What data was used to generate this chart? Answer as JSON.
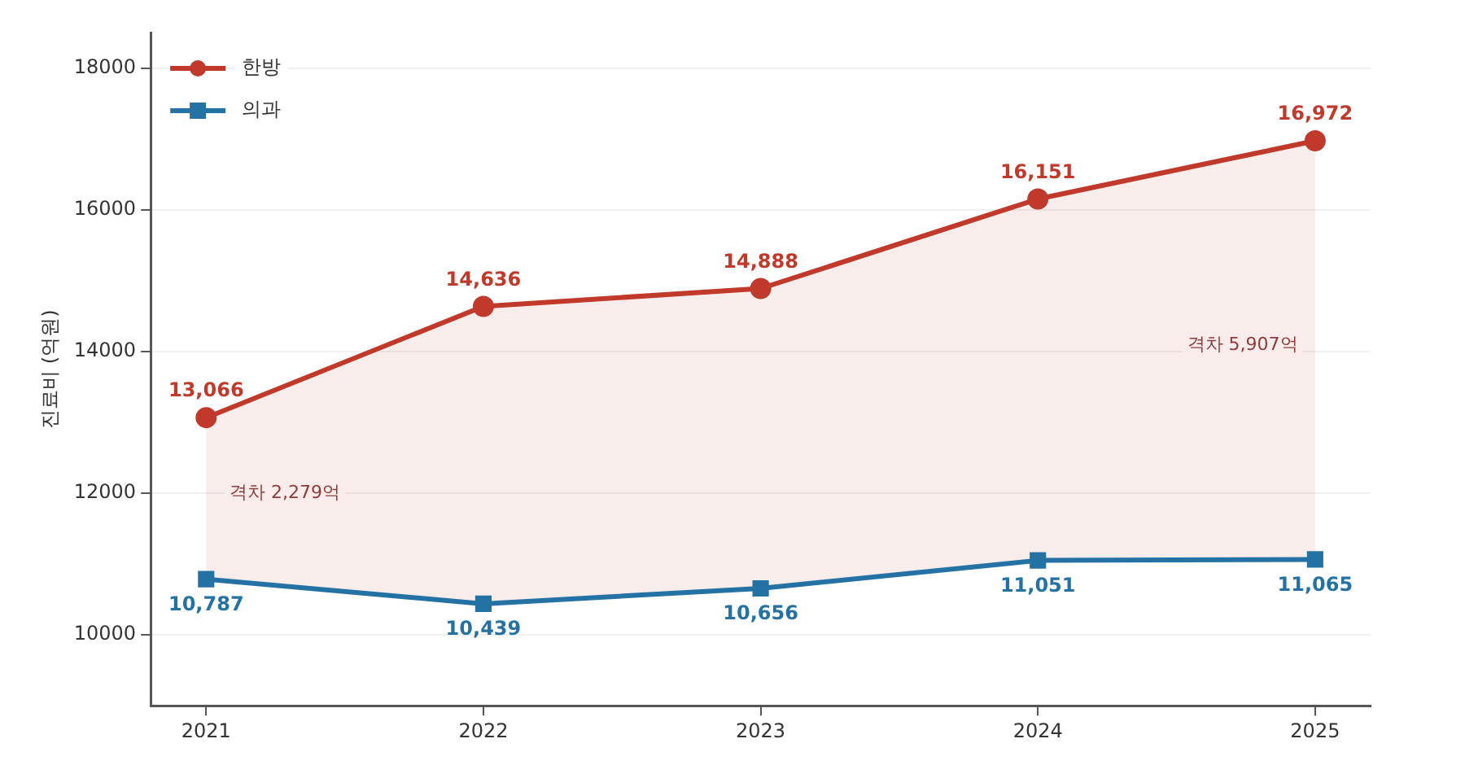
{
  "chart_data": {
    "type": "line",
    "ylabel": "진료비 (억원)",
    "x": [
      2021,
      2022,
      2023,
      2024,
      2025
    ],
    "xlim": [
      2020.8,
      2025.2
    ],
    "xticks": [
      2021,
      2022,
      2023,
      2024,
      2025
    ],
    "ylim": [
      9000,
      18500
    ],
    "yticks": [
      10000,
      12000,
      14000,
      16000,
      18000
    ],
    "series": [
      {
        "name": "한방",
        "color": "#c0392b",
        "marker": "circle",
        "values": [
          13066,
          14636,
          14888,
          16151,
          16972
        ],
        "value_labels": [
          "13,066",
          "14,636",
          "14,888",
          "16,151",
          "16,972"
        ],
        "lower": [
          10787,
          10439,
          10656,
          11051,
          11065
        ],
        "upper": [
          13066,
          14636,
          14888,
          16151,
          16972
        ]
      },
      {
        "name": "의과",
        "color": "#2471a3",
        "marker": "square",
        "values": [
          10787,
          10439,
          10656,
          11051,
          11065
        ],
        "value_labels": [
          "10,787",
          "10,439",
          "10,656",
          "11,051",
          "11,065"
        ]
      }
    ],
    "annotations": [
      "격차 2,279억",
      "격차 5,907억"
    ],
    "grid": "y",
    "legend": "top left",
    "line_style": "solid"
  }
}
